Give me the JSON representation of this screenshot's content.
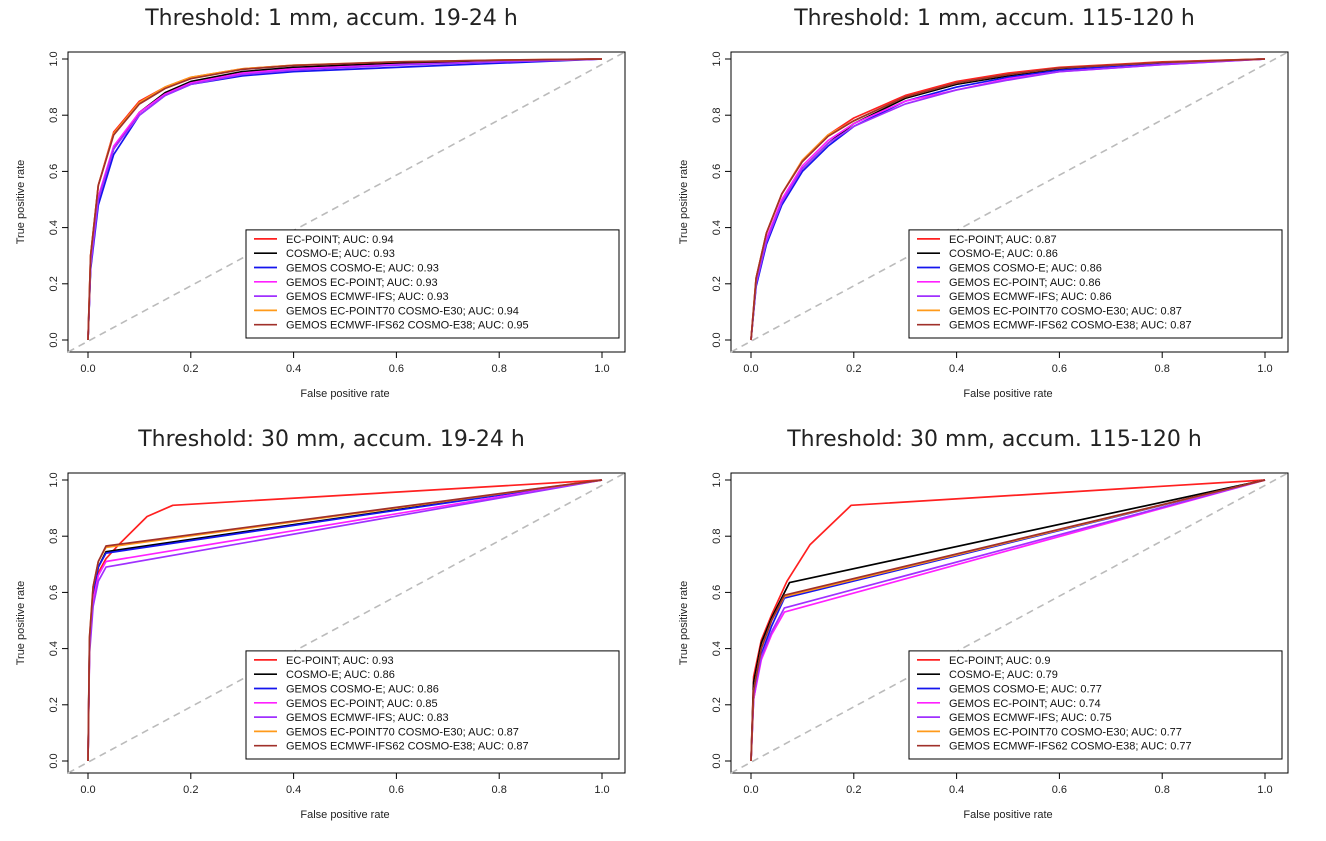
{
  "chart_data": [
    {
      "type": "line",
      "title": "Threshold: 1 mm, accum. 19-24 h",
      "xlabel": "False positive rate",
      "ylabel": "True positive rate",
      "xlim": [
        0,
        1
      ],
      "ylim": [
        0,
        1
      ],
      "xticks": [
        "0.0",
        "0.2",
        "0.4",
        "0.6",
        "0.8",
        "1.0"
      ],
      "yticks": [
        "0.0",
        "0.2",
        "0.4",
        "0.6",
        "0.8",
        "1.0"
      ],
      "legend_position": "bottom-right",
      "reference_line": "diagonal dashed gray",
      "series": [
        {
          "name": "EC-POINT; AUC: 0.94",
          "color": "#ff2020",
          "x": [
            0,
            0.005,
            0.02,
            0.05,
            0.1,
            0.15,
            0.2,
            0.3,
            0.4,
            0.6,
            0.8,
            1
          ],
          "y": [
            0,
            0.3,
            0.55,
            0.74,
            0.85,
            0.9,
            0.935,
            0.965,
            0.978,
            0.988,
            0.995,
            1
          ]
        },
        {
          "name": "COSMO-E; AUC: 0.93",
          "color": "#000000",
          "x": [
            0,
            0.005,
            0.02,
            0.05,
            0.1,
            0.15,
            0.2,
            0.3,
            0.4,
            0.6,
            0.8,
            1
          ],
          "y": [
            0,
            0.26,
            0.5,
            0.68,
            0.81,
            0.88,
            0.92,
            0.955,
            0.97,
            0.985,
            0.993,
            1
          ]
        },
        {
          "name": "GEMOS COSMO-E; AUC: 0.93",
          "color": "#1515ee",
          "x": [
            0,
            0.005,
            0.02,
            0.05,
            0.1,
            0.15,
            0.2,
            0.3,
            0.4,
            0.6,
            0.8,
            1
          ],
          "y": [
            0,
            0.25,
            0.48,
            0.66,
            0.8,
            0.87,
            0.91,
            0.94,
            0.955,
            0.97,
            0.985,
            1
          ]
        },
        {
          "name": "GEMOS EC-POINT; AUC: 0.93",
          "color": "#ff20ff",
          "x": [
            0,
            0.005,
            0.02,
            0.05,
            0.1,
            0.15,
            0.2,
            0.3,
            0.4,
            0.6,
            0.8,
            1
          ],
          "y": [
            0,
            0.27,
            0.51,
            0.69,
            0.81,
            0.875,
            0.915,
            0.95,
            0.965,
            0.98,
            0.99,
            1
          ]
        },
        {
          "name": "GEMOS ECMWF-IFS; AUC: 0.93",
          "color": "#a030ff",
          "x": [
            0,
            0.005,
            0.02,
            0.05,
            0.1,
            0.15,
            0.2,
            0.3,
            0.4,
            0.6,
            0.8,
            1
          ],
          "y": [
            0,
            0.26,
            0.5,
            0.68,
            0.8,
            0.87,
            0.91,
            0.945,
            0.96,
            0.978,
            0.99,
            1
          ]
        },
        {
          "name": "GEMOS EC-POINT70 COSMO-E30; AUC: 0.94",
          "color": "#ff9a1a",
          "x": [
            0,
            0.005,
            0.02,
            0.05,
            0.1,
            0.15,
            0.2,
            0.3,
            0.4,
            0.6,
            0.8,
            1
          ],
          "y": [
            0,
            0.3,
            0.55,
            0.735,
            0.845,
            0.9,
            0.935,
            0.965,
            0.978,
            0.99,
            0.996,
            1
          ]
        },
        {
          "name": "GEMOS ECMWF-IFS62 COSMO-E38; AUC: 0.95",
          "color": "#a0302a",
          "x": [
            0,
            0.005,
            0.02,
            0.05,
            0.1,
            0.15,
            0.2,
            0.3,
            0.4,
            0.6,
            0.8,
            1
          ],
          "y": [
            0,
            0.3,
            0.55,
            0.73,
            0.84,
            0.895,
            0.93,
            0.963,
            0.977,
            0.99,
            0.996,
            1
          ]
        }
      ]
    },
    {
      "type": "line",
      "title": "Threshold: 1 mm, accum. 115-120 h",
      "xlabel": "False positive rate",
      "ylabel": "True positive rate",
      "xlim": [
        0,
        1
      ],
      "ylim": [
        0,
        1
      ],
      "xticks": [
        "0.0",
        "0.2",
        "0.4",
        "0.6",
        "0.8",
        "1.0"
      ],
      "yticks": [
        "0.0",
        "0.2",
        "0.4",
        "0.6",
        "0.8",
        "1.0"
      ],
      "legend_position": "bottom-right",
      "reference_line": "diagonal dashed gray",
      "series": [
        {
          "name": "EC-POINT; AUC: 0.87",
          "color": "#ff2020",
          "x": [
            0,
            0.01,
            0.03,
            0.06,
            0.1,
            0.15,
            0.2,
            0.3,
            0.4,
            0.5,
            0.6,
            0.8,
            1
          ],
          "y": [
            0,
            0.22,
            0.38,
            0.52,
            0.64,
            0.73,
            0.79,
            0.87,
            0.92,
            0.95,
            0.97,
            0.99,
            1
          ]
        },
        {
          "name": "COSMO-E; AUC: 0.86",
          "color": "#000000",
          "x": [
            0,
            0.01,
            0.03,
            0.06,
            0.1,
            0.15,
            0.2,
            0.3,
            0.4,
            0.5,
            0.6,
            0.8,
            1
          ],
          "y": [
            0,
            0.2,
            0.35,
            0.49,
            0.61,
            0.7,
            0.77,
            0.86,
            0.91,
            0.94,
            0.965,
            0.985,
            1
          ]
        },
        {
          "name": "GEMOS COSMO-E; AUC: 0.86",
          "color": "#1515ee",
          "x": [
            0,
            0.01,
            0.03,
            0.06,
            0.1,
            0.15,
            0.2,
            0.3,
            0.4,
            0.5,
            0.6,
            0.8,
            1
          ],
          "y": [
            0,
            0.19,
            0.34,
            0.48,
            0.6,
            0.69,
            0.76,
            0.85,
            0.9,
            0.935,
            0.96,
            0.985,
            1
          ]
        },
        {
          "name": "GEMOS EC-POINT; AUC: 0.86",
          "color": "#ff20ff",
          "x": [
            0,
            0.01,
            0.03,
            0.06,
            0.1,
            0.15,
            0.2,
            0.3,
            0.4,
            0.5,
            0.6,
            0.8,
            1
          ],
          "y": [
            0,
            0.21,
            0.36,
            0.5,
            0.62,
            0.71,
            0.77,
            0.85,
            0.89,
            0.93,
            0.955,
            0.98,
            1
          ]
        },
        {
          "name": "GEMOS ECMWF-IFS; AUC: 0.86",
          "color": "#a030ff",
          "x": [
            0,
            0.01,
            0.03,
            0.06,
            0.1,
            0.15,
            0.2,
            0.3,
            0.4,
            0.5,
            0.6,
            0.8,
            1
          ],
          "y": [
            0,
            0.2,
            0.35,
            0.49,
            0.61,
            0.7,
            0.76,
            0.84,
            0.89,
            0.925,
            0.955,
            0.98,
            1
          ]
        },
        {
          "name": "GEMOS EC-POINT70 COSMO-E30; AUC: 0.87",
          "color": "#ff9a1a",
          "x": [
            0,
            0.01,
            0.03,
            0.06,
            0.1,
            0.15,
            0.2,
            0.3,
            0.4,
            0.5,
            0.6,
            0.8,
            1
          ],
          "y": [
            0,
            0.22,
            0.38,
            0.52,
            0.64,
            0.73,
            0.78,
            0.865,
            0.915,
            0.945,
            0.968,
            0.988,
            1
          ]
        },
        {
          "name": "GEMOS ECMWF-IFS62 COSMO-E38; AUC: 0.87",
          "color": "#a0302a",
          "x": [
            0,
            0.01,
            0.03,
            0.06,
            0.1,
            0.15,
            0.2,
            0.3,
            0.4,
            0.5,
            0.6,
            0.8,
            1
          ],
          "y": [
            0,
            0.22,
            0.38,
            0.52,
            0.635,
            0.725,
            0.78,
            0.865,
            0.915,
            0.945,
            0.968,
            0.988,
            1
          ]
        }
      ]
    },
    {
      "type": "line",
      "title": "Threshold: 30 mm, accum. 19-24 h",
      "xlabel": "False positive rate",
      "ylabel": "True positive rate",
      "xlim": [
        0,
        1
      ],
      "ylim": [
        0,
        1
      ],
      "xticks": [
        "0.0",
        "0.2",
        "0.4",
        "0.6",
        "0.8",
        "1.0"
      ],
      "yticks": [
        "0.0",
        "0.2",
        "0.4",
        "0.6",
        "0.8",
        "1.0"
      ],
      "legend_position": "bottom-right",
      "reference_line": "diagonal dashed gray",
      "series": [
        {
          "name": "EC-POINT; AUC: 0.93",
          "color": "#ff2020",
          "x": [
            0,
            0.003,
            0.01,
            0.02,
            0.035,
            0.06,
            0.115,
            0.165,
            1
          ],
          "y": [
            0,
            0.4,
            0.58,
            0.67,
            0.72,
            0.77,
            0.87,
            0.91,
            1
          ]
        },
        {
          "name": "COSMO-E; AUC: 0.86",
          "color": "#000000",
          "x": [
            0,
            0.003,
            0.01,
            0.02,
            0.035,
            1
          ],
          "y": [
            0,
            0.42,
            0.6,
            0.69,
            0.745,
            1
          ]
        },
        {
          "name": "GEMOS COSMO-E; AUC: 0.86",
          "color": "#1515ee",
          "x": [
            0,
            0.003,
            0.01,
            0.02,
            0.035,
            1
          ],
          "y": [
            0,
            0.42,
            0.6,
            0.69,
            0.74,
            1
          ]
        },
        {
          "name": "GEMOS EC-POINT; AUC: 0.85",
          "color": "#ff20ff",
          "x": [
            0,
            0.003,
            0.01,
            0.02,
            0.035,
            1
          ],
          "y": [
            0,
            0.4,
            0.57,
            0.66,
            0.71,
            1
          ]
        },
        {
          "name": "GEMOS ECMWF-IFS; AUC: 0.83",
          "color": "#a030ff",
          "x": [
            0,
            0.003,
            0.01,
            0.02,
            0.035,
            1
          ],
          "y": [
            0,
            0.38,
            0.55,
            0.64,
            0.69,
            1
          ]
        },
        {
          "name": "GEMOS EC-POINT70 COSMO-E30; AUC: 0.87",
          "color": "#ff9a1a",
          "x": [
            0,
            0.003,
            0.01,
            0.02,
            0.035,
            1
          ],
          "y": [
            0,
            0.44,
            0.62,
            0.71,
            0.76,
            1
          ]
        },
        {
          "name": "GEMOS ECMWF-IFS62 COSMO-E38; AUC: 0.87",
          "color": "#a0302a",
          "x": [
            0,
            0.003,
            0.01,
            0.02,
            0.035,
            1
          ],
          "y": [
            0,
            0.44,
            0.62,
            0.71,
            0.765,
            1
          ]
        }
      ]
    },
    {
      "type": "line",
      "title": "Threshold: 30 mm, accum. 115-120 h",
      "xlabel": "False positive rate",
      "ylabel": "True positive rate",
      "xlim": [
        0,
        1
      ],
      "ylim": [
        0,
        1
      ],
      "xticks": [
        "0.0",
        "0.2",
        "0.4",
        "0.6",
        "0.8",
        "1.0"
      ],
      "yticks": [
        "0.0",
        "0.2",
        "0.4",
        "0.6",
        "0.8",
        "1.0"
      ],
      "legend_position": "bottom-right",
      "reference_line": "diagonal dashed gray",
      "series": [
        {
          "name": "EC-POINT; AUC: 0.9",
          "color": "#ff2020",
          "x": [
            0,
            0.005,
            0.02,
            0.04,
            0.07,
            0.115,
            0.195,
            1
          ],
          "y": [
            0,
            0.3,
            0.43,
            0.52,
            0.64,
            0.77,
            0.91,
            1
          ]
        },
        {
          "name": "COSMO-E; AUC: 0.79",
          "color": "#000000",
          "x": [
            0,
            0.005,
            0.02,
            0.04,
            0.075,
            1
          ],
          "y": [
            0,
            0.28,
            0.42,
            0.51,
            0.635,
            1
          ]
        },
        {
          "name": "GEMOS COSMO-E; AUC: 0.77",
          "color": "#1515ee",
          "x": [
            0,
            0.005,
            0.02,
            0.04,
            0.065,
            1
          ],
          "y": [
            0,
            0.22,
            0.38,
            0.48,
            0.58,
            1
          ]
        },
        {
          "name": "GEMOS EC-POINT; AUC: 0.74",
          "color": "#ff20ff",
          "x": [
            0,
            0.005,
            0.02,
            0.04,
            0.065,
            1
          ],
          "y": [
            0,
            0.22,
            0.36,
            0.45,
            0.53,
            1
          ]
        },
        {
          "name": "GEMOS ECMWF-IFS; AUC: 0.75",
          "color": "#a030ff",
          "x": [
            0,
            0.005,
            0.02,
            0.04,
            0.065,
            1
          ],
          "y": [
            0,
            0.23,
            0.37,
            0.46,
            0.545,
            1
          ]
        },
        {
          "name": "GEMOS EC-POINT70 COSMO-E30; AUC: 0.77",
          "color": "#ff9a1a",
          "x": [
            0,
            0.005,
            0.02,
            0.04,
            0.065,
            1
          ],
          "y": [
            0,
            0.25,
            0.4,
            0.5,
            0.585,
            1
          ]
        },
        {
          "name": "GEMOS ECMWF-IFS62 COSMO-E38; AUC: 0.77",
          "color": "#a0302a",
          "x": [
            0,
            0.005,
            0.02,
            0.04,
            0.065,
            1
          ],
          "y": [
            0,
            0.25,
            0.4,
            0.5,
            0.59,
            1
          ]
        }
      ]
    }
  ]
}
